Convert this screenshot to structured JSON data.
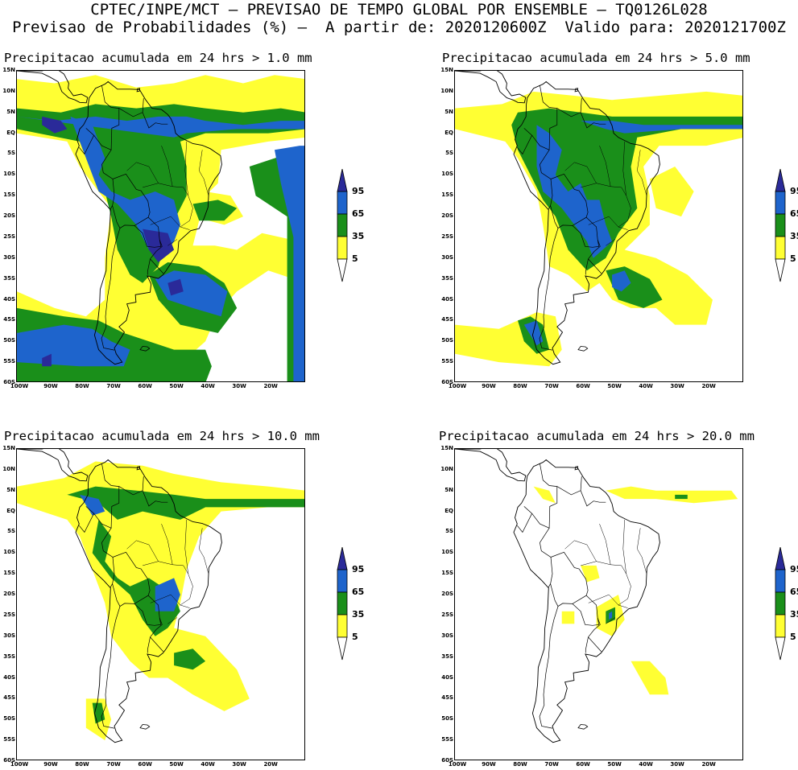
{
  "header": {
    "line1": "CPTEC/INPE/MCT – PREVISAO DE TEMPO GLOBAL POR ENSEMBLE – TQ0126L028",
    "line2": "Previsao de Probabilidades (%) –  A partir de: 2020120600Z  Valido para: 2020121700Z"
  },
  "panels": [
    {
      "title": "Precipitacao acumulada em 24 hrs > 1.0 mm"
    },
    {
      "title": "Precipitacao acumulada em 24 hrs > 5.0 mm"
    },
    {
      "title": "Precipitacao acumulada em 24 hrs > 10.0 mm"
    },
    {
      "title": "Precipitacao acumulada em 24 hrs > 20.0 mm"
    }
  ],
  "lat_labels": [
    "15N",
    "10N",
    "5N",
    "EQ",
    "5S",
    "10S",
    "15S",
    "20S",
    "25S",
    "30S",
    "35S",
    "40S",
    "45S",
    "50S",
    "55S",
    "60S"
  ],
  "lon_labels": [
    "100W",
    "90W",
    "80W",
    "70W",
    "60W",
    "50W",
    "40W",
    "30W",
    "20W"
  ],
  "colorbar": {
    "labels": [
      "95",
      "65",
      "35",
      "5"
    ],
    "colors": {
      "c5": "#ffff33",
      "c35": "#1a8f1a",
      "c65": "#1e64cc",
      "c95": "#2a2a99"
    }
  }
}
